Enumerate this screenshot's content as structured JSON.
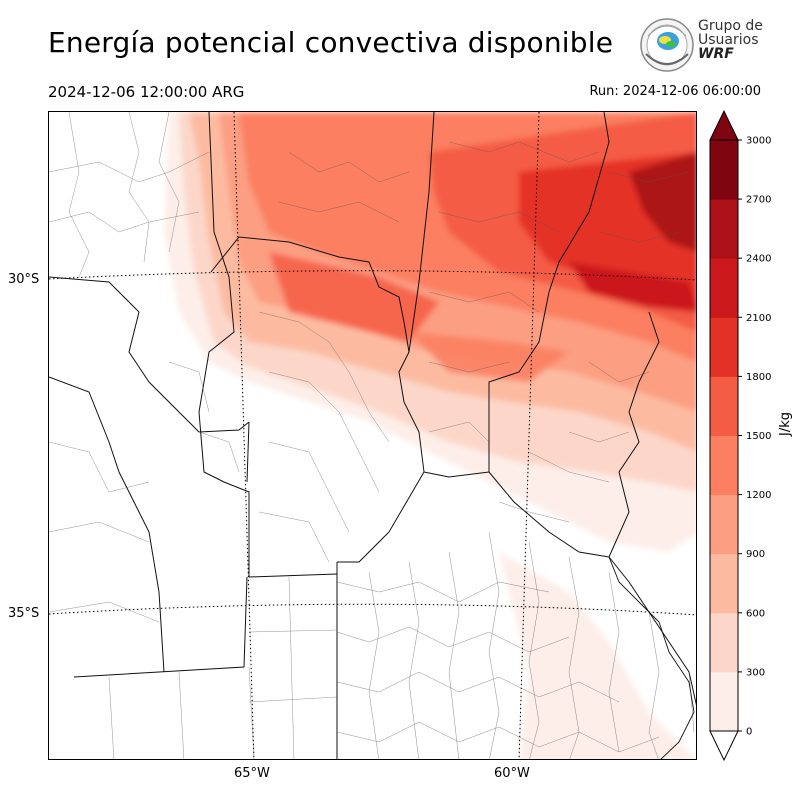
{
  "header": {
    "title": "Energía potencial convectiva disponible",
    "valid_time": "2024-12-06 12:00:00 ARG",
    "run_time": "Run: 2024-12-06 06:00:00"
  },
  "logo": {
    "line1": "Grupo de",
    "line2": "Usuarios",
    "line3": "WRF"
  },
  "map": {
    "lat_labels": [
      "30°S",
      "35°S"
    ],
    "lon_labels": [
      "65°W",
      "60°W"
    ],
    "gridlines": "dotted",
    "field": "CAPE"
  },
  "colorbar": {
    "unit": "J/kg",
    "ticks": [
      "0",
      "300",
      "600",
      "900",
      "1200",
      "1500",
      "1800",
      "2100",
      "2400",
      "2700",
      "3000"
    ],
    "levels": [
      0,
      300,
      600,
      900,
      1200,
      1500,
      1800,
      2100,
      2400,
      2700,
      3000
    ],
    "colors": [
      "#fdeee9",
      "#fcd7c9",
      "#fcbba1",
      "#fc9e82",
      "#fb7f60",
      "#f45c44",
      "#e43128",
      "#cb181d",
      "#ad1218",
      "#7f0510"
    ],
    "extend": "both"
  }
}
